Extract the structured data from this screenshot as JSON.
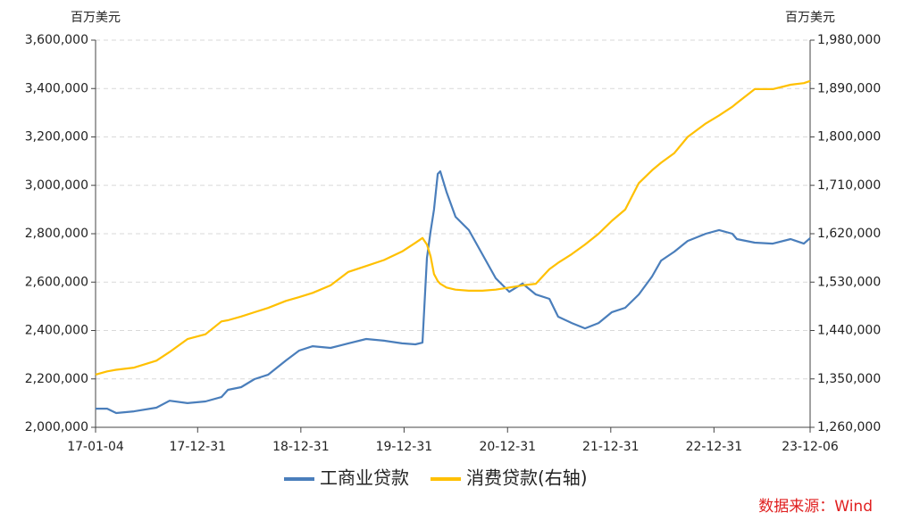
{
  "chart_data": {
    "type": "line",
    "y_unit": "百万美元",
    "y2_unit": "百万美元",
    "source": "数据来源：Wind",
    "x": [
      "17-01-04",
      "17-02-14",
      "17-03-18",
      "17-05-20",
      "17-08-07",
      "17-09-23",
      "17-11-25",
      "18-01-28",
      "18-03-25",
      "18-04-17",
      "18-06-03",
      "18-07-20",
      "18-09-06",
      "18-11-08",
      "18-12-25",
      "19-02-11",
      "19-04-15",
      "19-06-17",
      "19-08-19",
      "19-10-21",
      "19-12-24",
      "20-02-09",
      "20-03-05",
      "20-03-21",
      "20-04-03",
      "20-04-15",
      "20-04-28",
      "20-05-07",
      "20-05-29",
      "20-06-30",
      "20-08-16",
      "20-10-03",
      "20-11-19",
      "21-01-06",
      "21-02-22",
      "21-04-10",
      "21-05-28",
      "21-06-28",
      "21-08-15",
      "21-10-01",
      "21-11-18",
      "22-01-04",
      "22-02-20",
      "22-04-09",
      "22-05-26",
      "22-06-27",
      "22-08-13",
      "22-09-29",
      "22-12-02",
      "23-01-18",
      "23-03-06",
      "23-03-22",
      "23-05-24",
      "23-07-27",
      "23-09-28",
      "23-11-14",
      "23-12-06"
    ],
    "xlim": [
      "17-01-04",
      "23-12-06"
    ],
    "xticks": [
      "17-01-04",
      "17-12-31",
      "18-12-31",
      "19-12-31",
      "20-12-31",
      "21-12-31",
      "22-12-31",
      "23-12-06"
    ],
    "ylim": [
      2000000,
      3600000
    ],
    "yticks": [
      {
        "value": 2000000,
        "label": "2,000,000"
      },
      {
        "value": 2200000,
        "label": "2,200,000"
      },
      {
        "value": 2400000,
        "label": "2,400,000"
      },
      {
        "value": 2600000,
        "label": "2,600,000"
      },
      {
        "value": 2800000,
        "label": "2,800,000"
      },
      {
        "value": 3000000,
        "label": "3,000,000"
      },
      {
        "value": 3200000,
        "label": "3,200,000"
      },
      {
        "value": 3400000,
        "label": "3,400,000"
      },
      {
        "value": 3600000,
        "label": "3,600,000"
      }
    ],
    "y2lim": [
      1260000,
      1980000
    ],
    "y2ticks": [
      {
        "value": 1260000,
        "label": "1,260,000"
      },
      {
        "value": 1350000,
        "label": "1,350,000"
      },
      {
        "value": 1440000,
        "label": "1,440,000"
      },
      {
        "value": 1530000,
        "label": "1,530,000"
      },
      {
        "value": 1620000,
        "label": "1,620,000"
      },
      {
        "value": 1710000,
        "label": "1,710,000"
      },
      {
        "value": 1800000,
        "label": "1,800,000"
      },
      {
        "value": 1890000,
        "label": "1,890,000"
      },
      {
        "value": 1980000,
        "label": "1,980,000"
      }
    ],
    "grid": true,
    "legend": "bottom",
    "series": [
      {
        "name": "工商业贷款",
        "color": "#4a7ebb",
        "values": [
          2077000,
          2077000,
          2059000,
          2066000,
          2081000,
          2110000,
          2100000,
          2107000,
          2125000,
          2155000,
          2166000,
          2199000,
          2217000,
          2276000,
          2317000,
          2335000,
          2328000,
          2347000,
          2365000,
          2358000,
          2347000,
          2343000,
          2350000,
          2700000,
          2810000,
          2900000,
          3047000,
          3058000,
          2973000,
          2870000,
          2815000,
          2715000,
          2616000,
          2560000,
          2594000,
          2549000,
          2531000,
          2457000,
          2431000,
          2409000,
          2431000,
          2476000,
          2494000,
          2549000,
          2623000,
          2689000,
          2726000,
          2770000,
          2800000,
          2815000,
          2800000,
          2778000,
          2763000,
          2759000,
          2778000,
          2759000,
          2782000
        ]
      },
      {
        "name": "消费贷款(右轴)",
        "color": "#ffc000",
        "axis": "y2",
        "values": [
          1358000,
          1364000,
          1367000,
          1371000,
          1384000,
          1400000,
          1424000,
          1433000,
          1457000,
          1459000,
          1466000,
          1474000,
          1482000,
          1495000,
          1502000,
          1510000,
          1524000,
          1549000,
          1560000,
          1571000,
          1587000,
          1603000,
          1612000,
          1600000,
          1578000,
          1545000,
          1532000,
          1527000,
          1520000,
          1516000,
          1514000,
          1514000,
          1516000,
          1520000,
          1524000,
          1527000,
          1554000,
          1566000,
          1582000,
          1600000,
          1620000,
          1644000,
          1665000,
          1714000,
          1738000,
          1752000,
          1770000,
          1800000,
          1825000,
          1840000,
          1856000,
          1863000,
          1889000,
          1889000,
          1897000,
          1900000,
          1904000
        ]
      }
    ]
  }
}
